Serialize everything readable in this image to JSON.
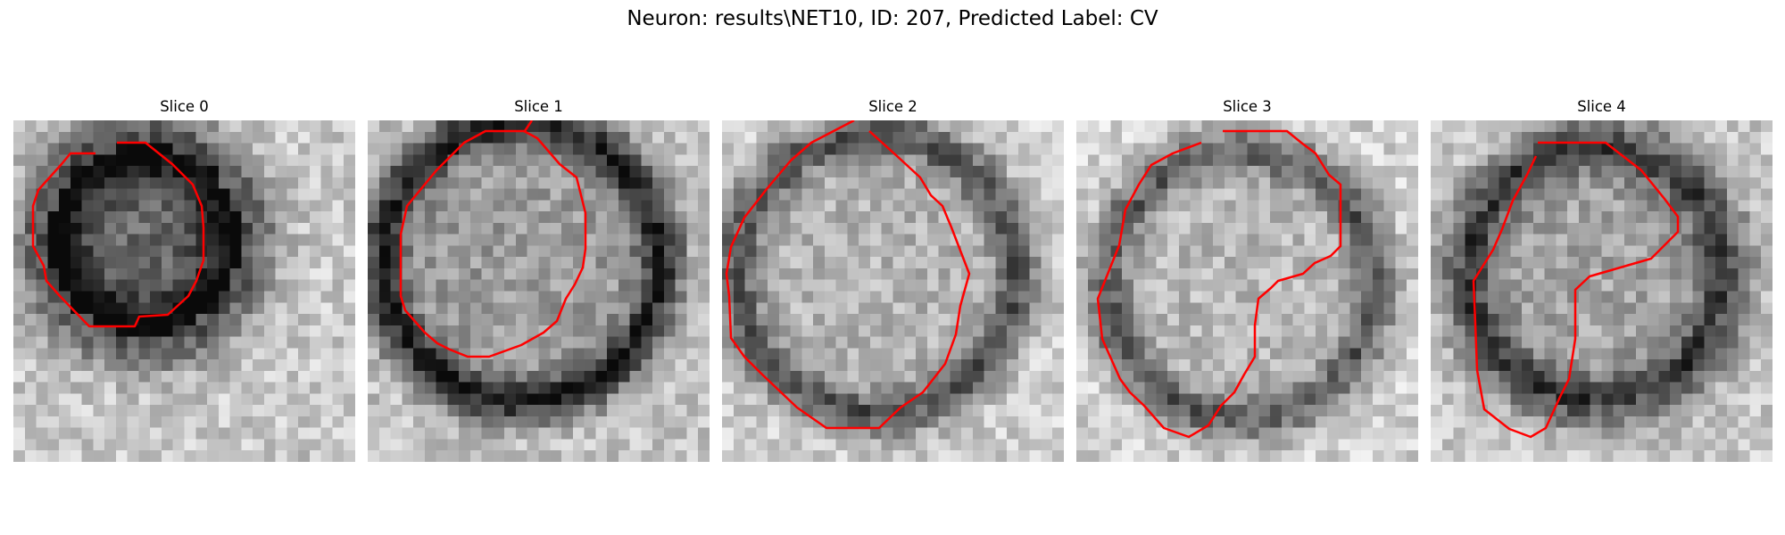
{
  "figure": {
    "title": "Neuron: results\\NET10, ID: 207, Predicted Label: CV"
  },
  "panels": [
    {
      "title": "Slice 0"
    },
    {
      "title": "Slice 1"
    },
    {
      "title": "Slice 2"
    },
    {
      "title": "Slice 3"
    },
    {
      "title": "Slice 4"
    }
  ],
  "style": {
    "contour_color": "#ff0000",
    "colormap": "grayscale",
    "image_grid": "30x30 grayscale pixels"
  }
}
